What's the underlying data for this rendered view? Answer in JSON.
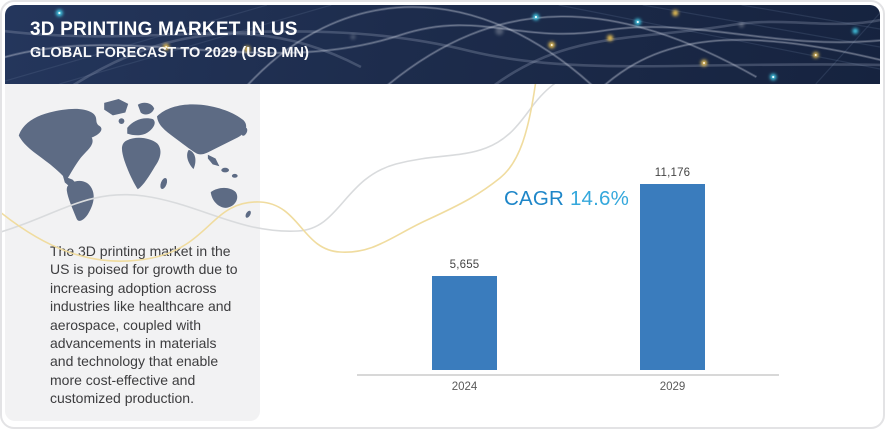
{
  "header": {
    "title": "3D PRINTING MARKET IN US",
    "subtitle": "GLOBAL FORECAST TO 2029 (USD MN)"
  },
  "sidebar": {
    "map_icon": "world-map",
    "description": "The 3D printing market in the\nUS is poised for growth due to\nincreasing adoption across\nindustries like healthcare and\naerospace, coupled with\nadvancements in materials\nand technology that enable\nmore cost-effective and\ncustomized production."
  },
  "chart_data": {
    "type": "bar",
    "categories": [
      "2024",
      "2029"
    ],
    "values": [
      5655,
      11176
    ],
    "value_labels": [
      "5,655",
      "11,176"
    ],
    "annotation_prefix": "CAGR",
    "annotation_value": "14.6%",
    "title": "3D PRINTING MARKET IN US",
    "xlabel": "",
    "ylabel": "",
    "ylim": [
      0,
      12000
    ],
    "grid": false,
    "legend": false,
    "bar_color": "#3a7cbd"
  },
  "colors": {
    "header_bg": "#1d2c4c",
    "panel_bg": "#f2f2f3",
    "map_fill": "#5d6b84",
    "wave_yellow": "#f0dc9f",
    "wave_gray": "#d9dbdd",
    "axis_line": "#d8d8d8",
    "glow_cyan": "#45d5f2",
    "glow_gold": "#f5c954",
    "cagr_prefix": "#1e86c8",
    "cagr_value": "#35a8dc",
    "value_label": "#454545",
    "year_label": "#5a5a5a",
    "body_text": "#3d3d3f"
  }
}
